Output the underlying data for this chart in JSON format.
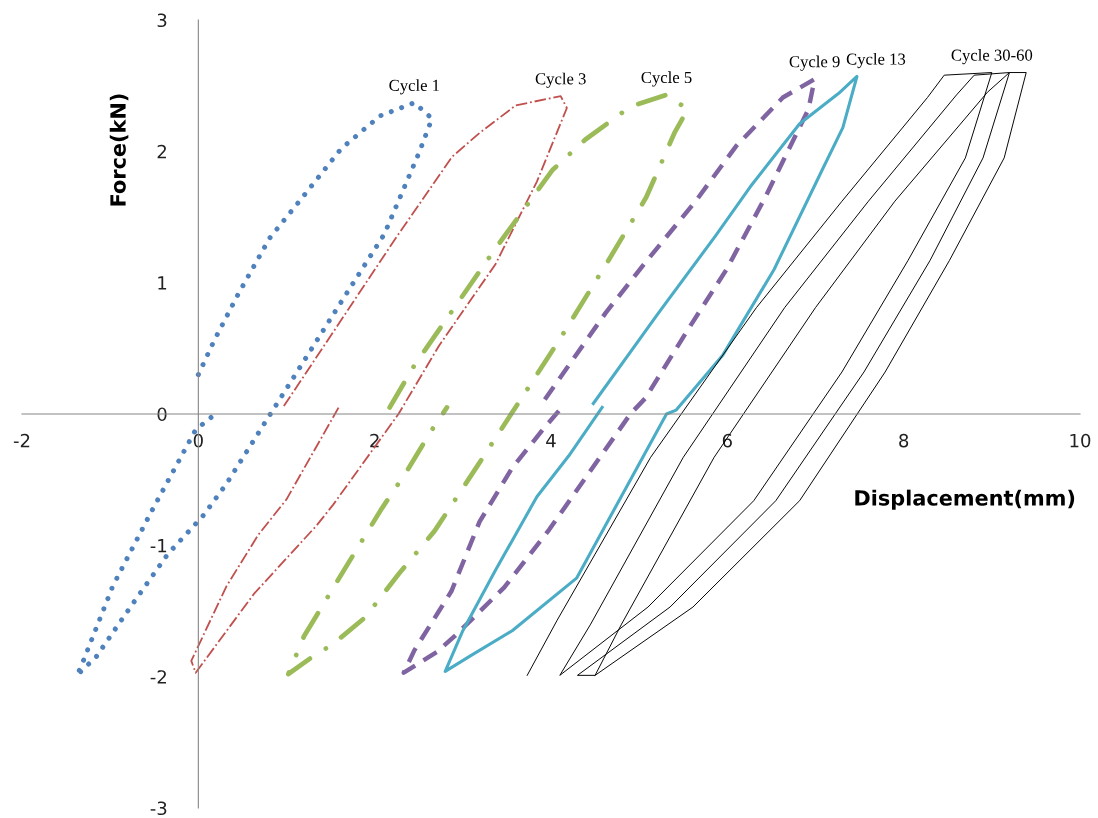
{
  "chart_data": {
    "type": "line",
    "xlabel": "Displacement(mm)",
    "ylabel": "Force(kN)",
    "xlim": [
      -2,
      10
    ],
    "xticks": [
      -2,
      0,
      2,
      4,
      6,
      8,
      10
    ],
    "ylim": [
      -3,
      3
    ],
    "yticks": [
      -3,
      -2,
      -1,
      0,
      1,
      2,
      3
    ],
    "grid": false,
    "legend": false,
    "series": [
      {
        "name": "Cycle 1",
        "color": "#4f81bd",
        "line_style": "dotted",
        "x": [
          0.0,
          0.18,
          0.45,
          0.81,
          1.17,
          1.62,
          2.06,
          2.45,
          2.65,
          2.51,
          2.11,
          1.57,
          0.95,
          0.77,
          0.32,
          0.06,
          -0.35,
          -0.76,
          -1.16,
          -1.38,
          -1.34,
          -0.97,
          -0.53,
          -0.03,
          0.23
        ],
        "values": [
          0.3,
          0.56,
          0.91,
          1.34,
          1.64,
          2.02,
          2.27,
          2.37,
          2.25,
          2.0,
          1.37,
          0.8,
          0.14,
          -0.05,
          -0.53,
          -0.77,
          -1.07,
          -1.46,
          -1.85,
          -1.99,
          -1.94,
          -1.31,
          -0.74,
          -0.12,
          0.02
        ]
      },
      {
        "name": "Cycle 3",
        "color": "#c0504d",
        "line_style": "dashdot",
        "x": [
          0.97,
          2.24,
          2.88,
          3.19,
          3.6,
          4.11,
          4.18,
          3.84,
          3.37,
          2.73,
          2.27,
          1.53,
          1.34,
          0.63,
          -0.03,
          -0.08,
          0.32,
          0.68,
          1.0,
          1.6
        ],
        "values": [
          0.06,
          1.34,
          1.96,
          2.14,
          2.35,
          2.42,
          2.33,
          1.77,
          1.14,
          0.52,
          0.0,
          -0.69,
          -0.85,
          -1.37,
          -1.97,
          -1.88,
          -1.31,
          -0.92,
          -0.65,
          0.06
        ]
      },
      {
        "name": "Cycle 5",
        "color": "#9bbb59",
        "line_style": "dashdot",
        "x": [
          2.17,
          2.45,
          2.77,
          3.37,
          4.02,
          4.39,
          4.9,
          5.31,
          5.55,
          5.4,
          5.08,
          4.67,
          4.11,
          3.51,
          3.18,
          2.68,
          2.27,
          1.89,
          1.53,
          1.27,
          1.02,
          1.2,
          1.48,
          1.76,
          2.08,
          2.36,
          2.64,
          2.82
        ],
        "values": [
          0.05,
          0.37,
          0.68,
          1.26,
          1.86,
          2.09,
          2.34,
          2.43,
          2.32,
          2.14,
          1.65,
          1.19,
          0.58,
          -0.04,
          -0.38,
          -0.89,
          -1.22,
          -1.55,
          -1.75,
          -1.86,
          -1.98,
          -1.69,
          -1.38,
          -1.07,
          -0.72,
          -0.44,
          -0.13,
          0.05
        ]
      },
      {
        "name": "Cycle 9",
        "color": "#8064a2",
        "line_style": "dashed",
        "x": [
          3.93,
          4.62,
          5.09,
          5.64,
          6.1,
          6.63,
          6.99,
          6.92,
          6.43,
          5.99,
          5.56,
          5.07,
          4.9,
          4.44,
          3.98,
          3.47,
          2.91,
          2.71,
          2.33,
          2.45,
          2.73,
          2.87,
          3.19,
          3.56,
          3.93,
          4.11
        ],
        "values": [
          0.11,
          0.77,
          1.17,
          1.62,
          2.04,
          2.41,
          2.55,
          2.32,
          1.65,
          1.1,
          0.65,
          0.12,
          0.0,
          -0.44,
          -0.88,
          -1.32,
          -1.69,
          -1.81,
          -1.97,
          -1.8,
          -1.5,
          -1.35,
          -0.82,
          -0.41,
          -0.1,
          0.04
        ]
      },
      {
        "name": "Cycle 13",
        "color": "#4bacc6",
        "line_style": "solid",
        "x": [
          4.48,
          5.22,
          5.87,
          6.26,
          6.82,
          7.26,
          7.47,
          7.31,
          7.07,
          6.53,
          5.95,
          5.42,
          5.31,
          4.29,
          3.56,
          3.09,
          2.8,
          3.0,
          3.37,
          3.84,
          4.2,
          4.58
        ],
        "values": [
          0.08,
          0.77,
          1.36,
          1.73,
          2.21,
          2.44,
          2.57,
          2.18,
          1.85,
          1.1,
          0.45,
          0.03,
          0.0,
          -1.25,
          -1.65,
          -1.84,
          -1.96,
          -1.65,
          -1.19,
          -0.63,
          -0.32,
          0.05
        ]
      },
      {
        "name": "Cycle 30-60",
        "color": "#000000",
        "line_style": "solid",
        "x": [
          3.73,
          4.07,
          5.13,
          6.33,
          7.3,
          8.27,
          8.46,
          9.0,
          8.7,
          8.05,
          7.3,
          6.3,
          5.1,
          4.1,
          4.1,
          4.45,
          5.5,
          6.65,
          7.6,
          8.6,
          8.8,
          9.2,
          8.9,
          8.3,
          7.55,
          6.55,
          5.35,
          4.3,
          4.5,
          4.8,
          5.85,
          7.0,
          7.9,
          8.95,
          9.2,
          9.39,
          9.14,
          8.52,
          7.79,
          6.82,
          5.61,
          4.5
        ],
        "values": [
          -1.99,
          -1.57,
          -0.33,
          0.81,
          1.62,
          2.41,
          2.58,
          2.6,
          1.95,
          1.17,
          0.32,
          -0.66,
          -1.47,
          -1.99,
          -1.99,
          -1.6,
          -0.33,
          0.81,
          1.62,
          2.43,
          2.58,
          2.6,
          1.95,
          1.17,
          0.32,
          -0.66,
          -1.47,
          -1.99,
          -1.99,
          -1.6,
          -0.33,
          0.81,
          1.62,
          2.45,
          2.6,
          2.6,
          1.95,
          1.17,
          0.32,
          -0.66,
          -1.47,
          -1.99
        ]
      }
    ]
  }
}
